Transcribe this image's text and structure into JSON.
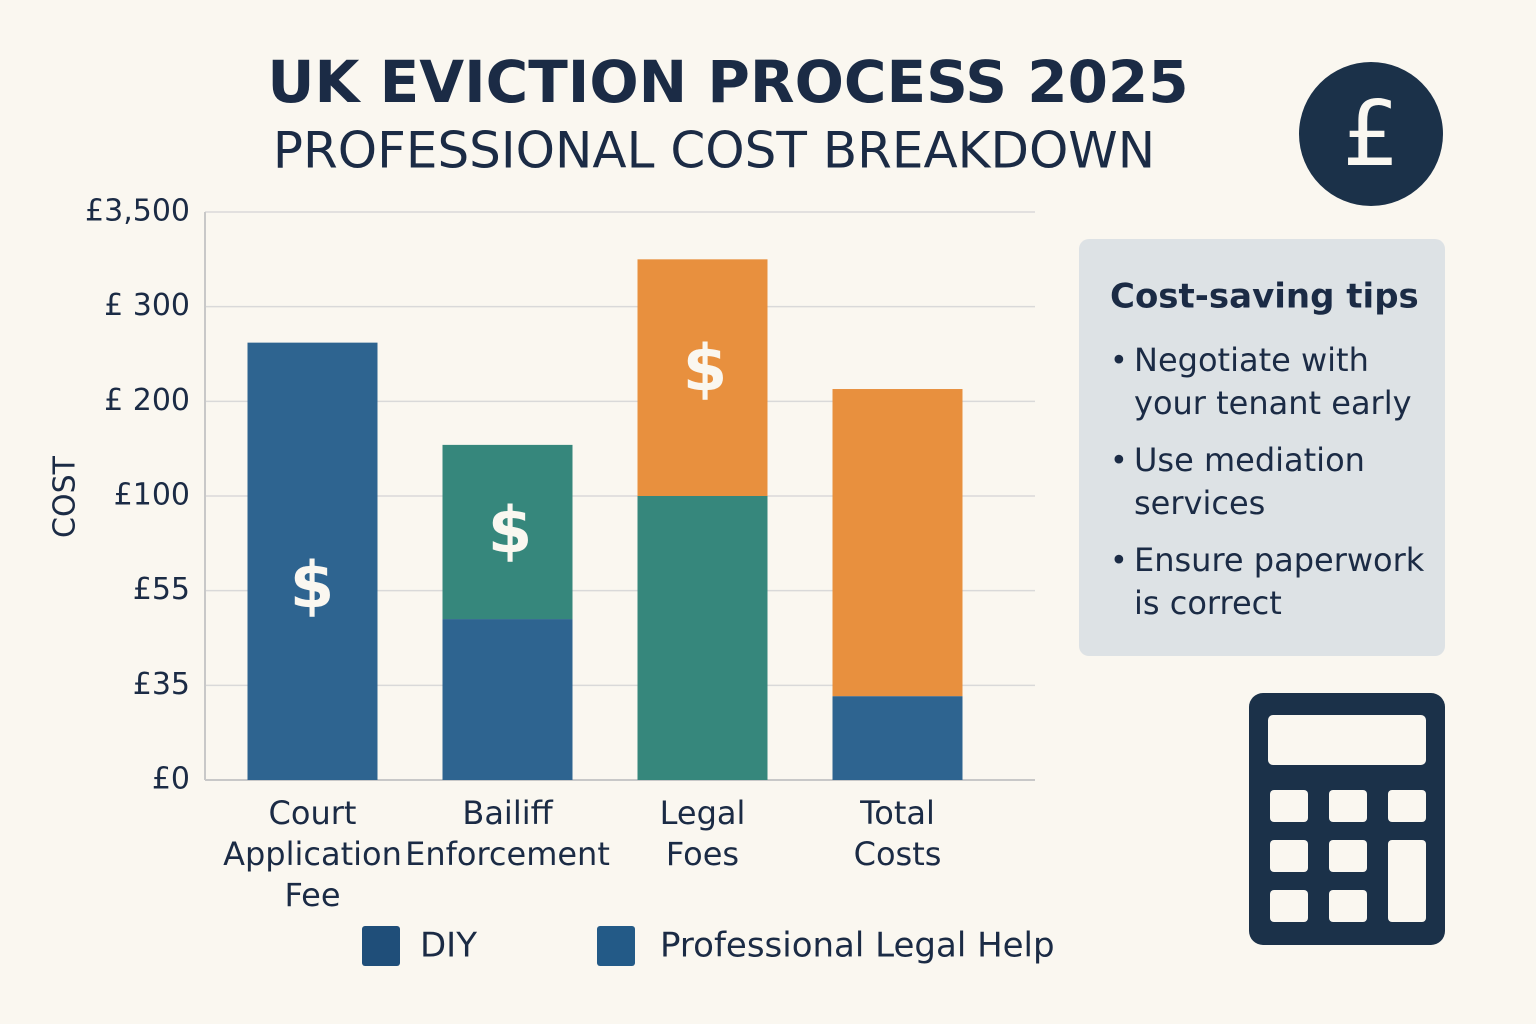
{
  "chart_data": {
    "type": "bar",
    "stacked": true,
    "title": "UK EVICTION PROCESS 2025",
    "subtitle": "PROFESSIONAL COST BREAKDOWN",
    "y_label": "COST",
    "categories": [
      "Court Application Fee",
      "Bailiff Enforcement",
      "Legal Foes",
      "Total Costs"
    ],
    "series": [
      {
        "name": "DIY",
        "color": "#1f4e79",
        "point_colors": [
          "#2e6490",
          "#2e6490",
          "#36877c",
          "#2e6490"
        ],
        "values": [
          262,
          49,
          100,
          31
        ]
      },
      {
        "name": "Professional Legal Help",
        "color": "#235a87",
        "point_colors": [
          null,
          "#36877c",
          "#e8903e",
          "#e8903e"
        ],
        "values": [
          null,
          105,
          1800,
          182
        ]
      }
    ],
    "annotations": [
      "$",
      "$",
      "$"
    ],
    "ylim": [
      0,
      3500
    ],
    "yticks": [
      {
        "value": 0,
        "label": "£0"
      },
      {
        "value": 35,
        "label": "£35"
      },
      {
        "value": 55,
        "label": "£55"
      },
      {
        "value": 100,
        "label": "£100"
      },
      {
        "value": 200,
        "label": "£ 200"
      },
      {
        "value": 300,
        "label": "£ 300"
      },
      {
        "value": 3500,
        "label": "£3,500"
      }
    ],
    "grid": true
  },
  "badge": "£",
  "tips": {
    "title": "Cost-saving tips",
    "items": [
      "Negotiate with your tenant early",
      "Use mediation services",
      "Ensure paperwork is correct"
    ]
  }
}
